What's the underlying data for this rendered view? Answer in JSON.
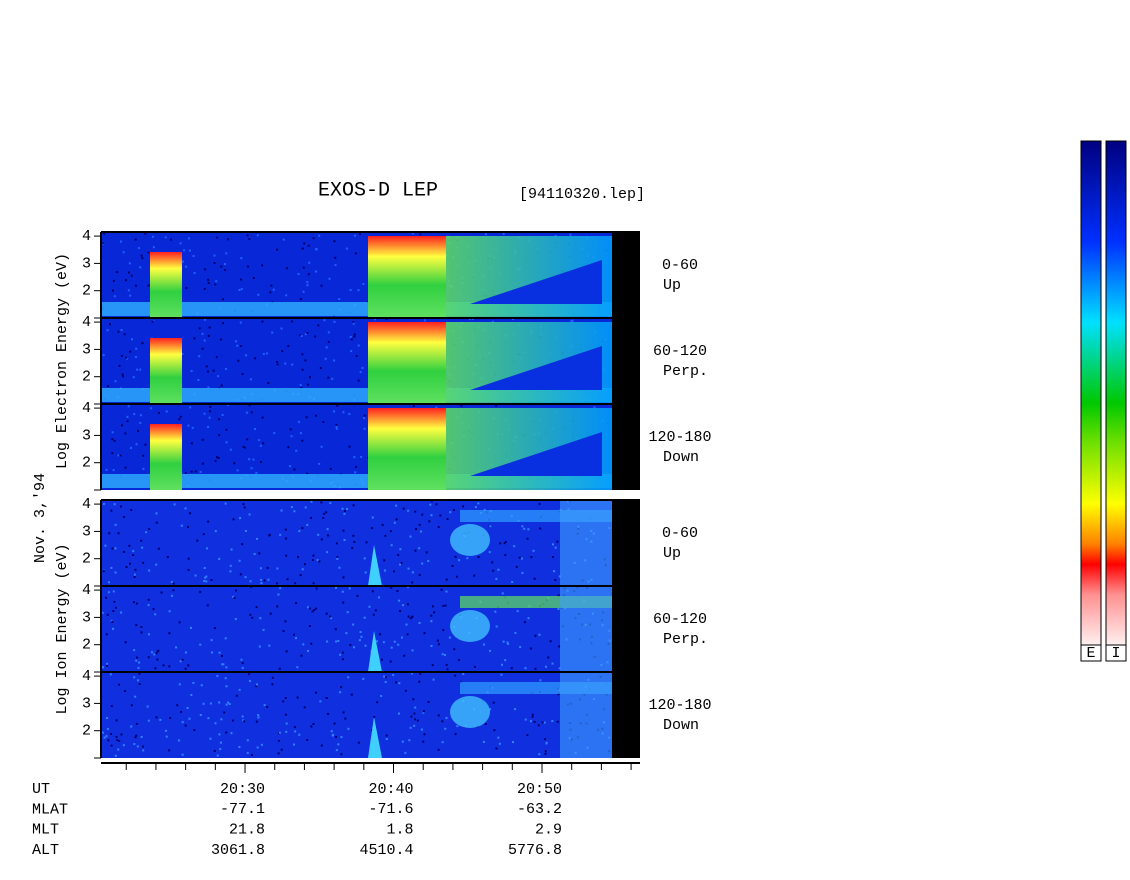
{
  "chart_data": {
    "type": "spectrogram",
    "title": "EXOS-D LEP",
    "file_label": "[94110320.lep]",
    "date_label": "Nov. 3,'94",
    "groups": [
      {
        "axis_label": "Log Electron Energy (eV)",
        "panels": [
          {
            "pitch": "0-60",
            "direction": "Up"
          },
          {
            "pitch": "60-120",
            "direction": "Perp."
          },
          {
            "pitch": "120-180",
            "direction": "Down"
          }
        ]
      },
      {
        "axis_label": "Log Ion Energy (eV)",
        "panels": [
          {
            "pitch": "0-60",
            "direction": "Up"
          },
          {
            "pitch": "60-120",
            "direction": "Perp."
          },
          {
            "pitch": "120-180",
            "direction": "Down"
          }
        ]
      }
    ],
    "ylim": [
      1,
      4.15
    ],
    "yticks": [
      2,
      3,
      4
    ],
    "xlim": [
      1220.3,
      1256.6
    ],
    "xticks": [
      {
        "value": 1230,
        "label": "20:30"
      },
      {
        "value": 1240,
        "label": "20:40"
      },
      {
        "value": 1250,
        "label": "20:50"
      }
    ],
    "xminorticks": [
      1222,
      1224,
      1226,
      1228,
      1232,
      1234,
      1236,
      1238,
      1242,
      1244,
      1246,
      1248,
      1252,
      1254,
      1256
    ],
    "ephemeris": {
      "names": [
        "UT",
        "MLAT",
        "MLT",
        "ALT"
      ],
      "rows": [
        [
          -77.1,
          -71.6,
          -63.2
        ],
        [
          21.8,
          1.8,
          2.9
        ],
        [
          3061.8,
          4510.4,
          5776.8
        ]
      ]
    },
    "colorbars": [
      "E",
      "I"
    ]
  }
}
